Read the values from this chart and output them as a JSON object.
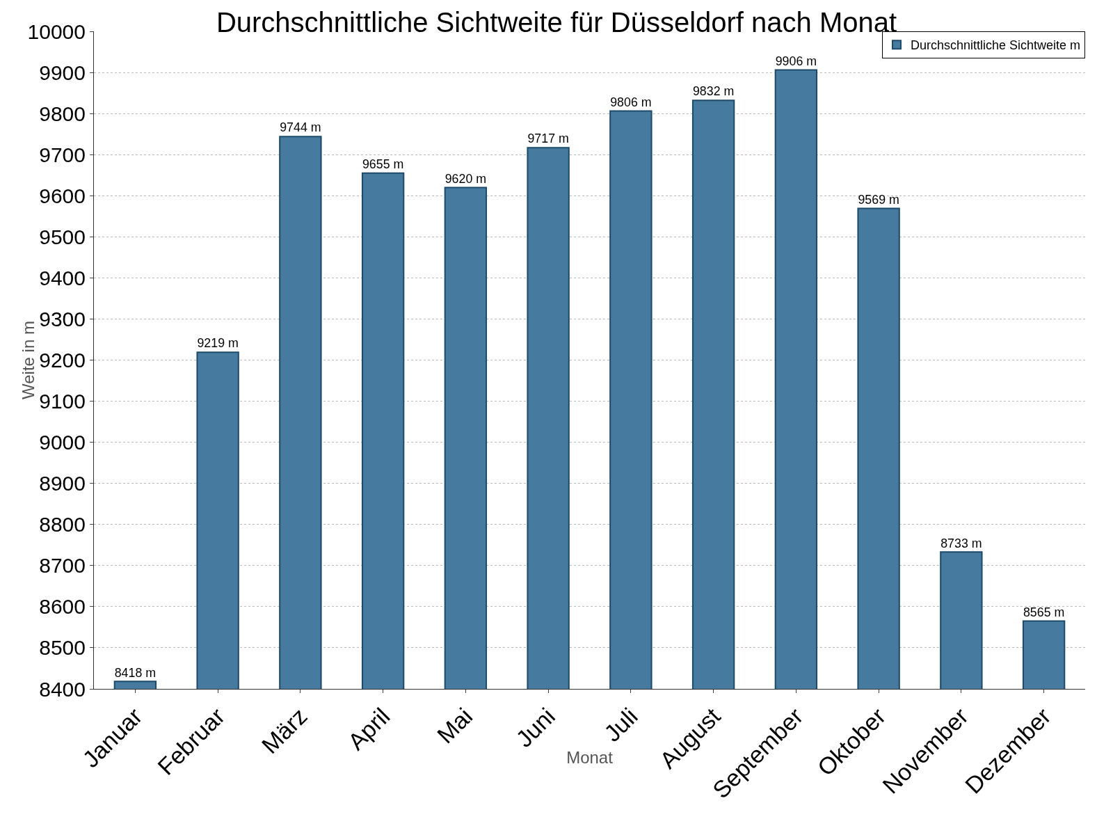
{
  "chart_data": {
    "type": "bar",
    "title": "Durchschnittliche Sichtweite für Düsseldorf nach Monat",
    "xlabel": "Monat",
    "ylabel": "Weite in m",
    "categories": [
      "Januar",
      "Februar",
      "März",
      "April",
      "Mai",
      "Juni",
      "Juli",
      "August",
      "September",
      "Oktober",
      "November",
      "Dezember"
    ],
    "series": [
      {
        "name": "Durchschnittliche Sichtweite m",
        "color": "#467a9e",
        "values": [
          8418,
          9219,
          9744,
          9655,
          9620,
          9717,
          9806,
          9832,
          9906,
          9569,
          8733,
          8565
        ],
        "value_labels": [
          "8418 m",
          "9219 m",
          "9744 m",
          "9655 m",
          "9620 m",
          "9717 m",
          "9806 m",
          "9832 m",
          "9906 m",
          "9569 m",
          "8733 m",
          "8565 m"
        ]
      }
    ],
    "ylim": [
      8400,
      10000
    ],
    "yticks": [
      8400,
      8500,
      8600,
      8700,
      8800,
      8900,
      9000,
      9100,
      9200,
      9300,
      9400,
      9500,
      9600,
      9700,
      9800,
      9900,
      10000
    ],
    "grid": "y",
    "legend": "top right"
  }
}
